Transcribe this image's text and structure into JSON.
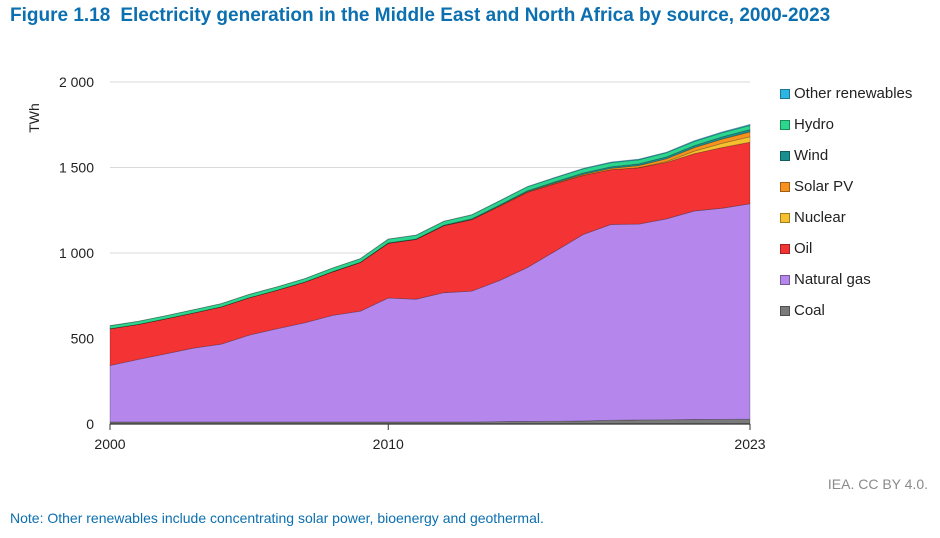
{
  "figure": {
    "number": "Figure 1.18",
    "title": "Electricity generation in the Middle East and North Africa by source, 2000-2023"
  },
  "source": "IEA. CC BY 4.0.",
  "note": "Note: Other renewables include concentrating solar power, bioenergy and geothermal.",
  "chart_data": {
    "type": "area",
    "stacked": true,
    "title": "Electricity generation in the Middle East and North Africa by source, 2000-2023",
    "xlabel": "",
    "ylabel": "TWh",
    "x": [
      2000,
      2001,
      2002,
      2003,
      2004,
      2005,
      2006,
      2007,
      2008,
      2009,
      2010,
      2011,
      2012,
      2013,
      2014,
      2015,
      2016,
      2017,
      2018,
      2019,
      2020,
      2021,
      2022,
      2023
    ],
    "xlim": [
      2000,
      2023
    ],
    "ylim": [
      0,
      2000
    ],
    "x_ticks": [
      {
        "value": 2000,
        "label": "2000"
      },
      {
        "value": 2010,
        "label": "2010"
      },
      {
        "value": 2023,
        "label": "2023"
      }
    ],
    "y_ticks": [
      {
        "value": 0,
        "label": "0"
      },
      {
        "value": 500,
        "label": "500"
      },
      {
        "value": 1000,
        "label": "1 000"
      },
      {
        "value": 1500,
        "label": "1 500"
      },
      {
        "value": 2000,
        "label": "2 000"
      }
    ],
    "grid": true,
    "legend_position": "right",
    "series": [
      {
        "name": "Coal",
        "color": "#7a7a7a",
        "values": [
          12,
          12,
          12,
          12,
          12,
          12,
          12,
          12,
          12,
          12,
          12,
          12,
          12,
          12,
          14,
          15,
          16,
          18,
          22,
          24,
          25,
          26,
          27,
          28
        ]
      },
      {
        "name": "Natural gas",
        "color": "#b587ec",
        "values": [
          330,
          365,
          398,
          432,
          455,
          508,
          545,
          580,
          623,
          648,
          725,
          718,
          756,
          765,
          825,
          900,
          995,
          1090,
          1145,
          1145,
          1175,
          1220,
          1235,
          1260
        ]
      },
      {
        "name": "Oil",
        "color": "#f43434",
        "values": [
          215,
          205,
          205,
          205,
          218,
          218,
          225,
          238,
          255,
          285,
          320,
          350,
          392,
          418,
          435,
          440,
          395,
          346,
          320,
          330,
          330,
          335,
          355,
          360
        ]
      },
      {
        "name": "Nuclear",
        "color": "#f5c12e",
        "values": [
          0,
          0,
          0,
          0,
          0,
          0,
          0,
          0,
          0,
          0,
          0,
          0,
          0,
          0,
          0,
          0,
          0,
          0,
          0,
          0,
          5,
          15,
          25,
          32
        ]
      },
      {
        "name": "Solar PV",
        "color": "#f7921e",
        "values": [
          0,
          0,
          0,
          0,
          0,
          0,
          0,
          0,
          0,
          0,
          0,
          0,
          0,
          1,
          2,
          3,
          4,
          6,
          8,
          12,
          16,
          20,
          24,
          28
        ]
      },
      {
        "name": "Wind",
        "color": "#1a8f8f",
        "values": [
          0,
          0,
          0,
          0,
          0,
          0,
          0,
          0,
          1,
          1,
          2,
          2,
          3,
          4,
          5,
          6,
          7,
          8,
          9,
          10,
          11,
          12,
          13,
          14
        ]
      },
      {
        "name": "Hydro",
        "color": "#2cd68e",
        "values": [
          18,
          18,
          18,
          19,
          19,
          20,
          20,
          20,
          21,
          21,
          22,
          22,
          22,
          23,
          23,
          23,
          23,
          24,
          24,
          24,
          24,
          24,
          24,
          24
        ]
      },
      {
        "name": "Other renewables",
        "color": "#2cb6e3",
        "values": [
          0,
          0,
          0,
          0,
          0,
          0,
          0,
          0,
          0,
          0,
          1,
          1,
          1,
          1,
          2,
          2,
          3,
          3,
          4,
          4,
          4,
          5,
          5,
          6
        ]
      }
    ]
  }
}
